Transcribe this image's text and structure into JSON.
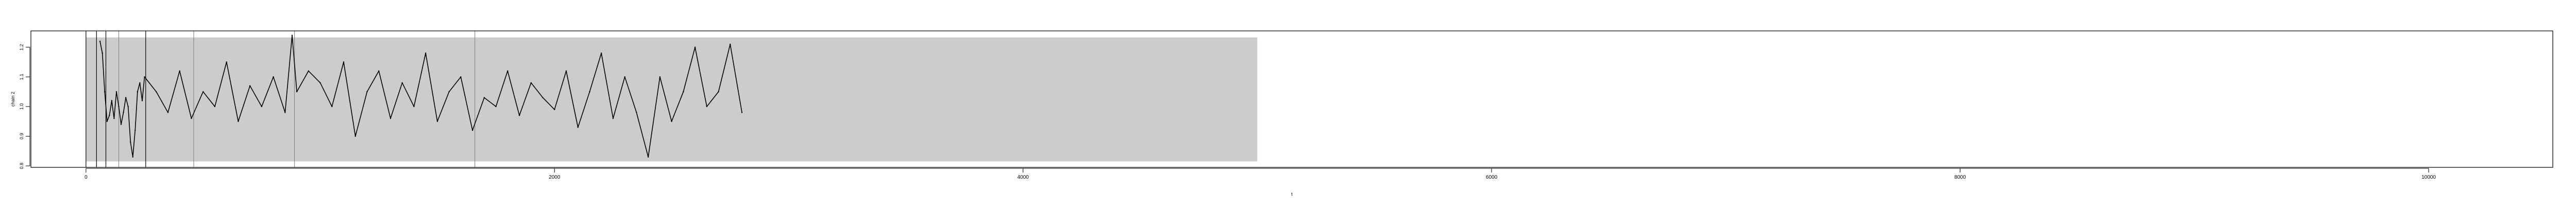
{
  "chart_data": {
    "type": "line",
    "title": "",
    "xlabel": "t",
    "ylabel": "chain 2",
    "xlim": [
      -235,
      10530
    ],
    "ylim": [
      0.795,
      1.255
    ],
    "x_ticks": [
      0,
      2000,
      4000,
      6000,
      8000,
      10000
    ],
    "x_tick_labels": [
      "0",
      "2000",
      "4000",
      "6000",
      "8000",
      "10000"
    ],
    "y_ticks": [
      0.8,
      0.9,
      1.0,
      1.1,
      1.2
    ],
    "y_tick_labels": [
      "0.8",
      "0.9",
      "1.0",
      "1.1",
      "1.2"
    ],
    "grid": false,
    "legend": "none",
    "shaded_region": {
      "x_start": 0,
      "x_end": 5000,
      "y_start": 0.815,
      "y_end": 1.233,
      "color": "#cccccc"
    },
    "vertical_lines": [
      {
        "x": 0,
        "color": "#000000"
      },
      {
        "x": 45,
        "color": "#000000"
      },
      {
        "x": 85,
        "color": "#000000"
      },
      {
        "x": 140,
        "color": "#888888"
      },
      {
        "x": 255,
        "color": "#000000"
      },
      {
        "x": 460,
        "color": "#888888"
      },
      {
        "x": 890,
        "color": "#888888"
      },
      {
        "x": 1660,
        "color": "#888888"
      }
    ],
    "series": [
      {
        "color": "#000000",
        "x": [
          60,
          70,
          80,
          90,
          100,
          110,
          120,
          130,
          140,
          150,
          160,
          170,
          180,
          190,
          200,
          210,
          220,
          230,
          240,
          250,
          300,
          350,
          400,
          450,
          500,
          550,
          600,
          650,
          700,
          750,
          800,
          850,
          880,
          900,
          950,
          1000,
          1050,
          1100,
          1150,
          1200,
          1250,
          1300,
          1350,
          1400,
          1450,
          1500,
          1550,
          1600,
          1650,
          1700,
          1750,
          1800,
          1850,
          1900,
          1950,
          2000,
          2050,
          2100,
          2150,
          2200,
          2250,
          2300,
          2350,
          2400,
          2450,
          2500,
          2550,
          2600,
          2650,
          2700,
          2750,
          2800
        ],
        "values": [
          1.22,
          1.18,
          1.05,
          0.95,
          0.97,
          1.02,
          0.96,
          1.05,
          1.0,
          0.94,
          0.98,
          1.03,
          1.0,
          0.88,
          0.83,
          0.92,
          1.05,
          1.08,
          1.02,
          1.1,
          1.05,
          0.98,
          1.12,
          0.96,
          1.05,
          1.0,
          1.15,
          0.95,
          1.07,
          1.0,
          1.1,
          0.98,
          1.24,
          1.05,
          1.12,
          1.08,
          1.0,
          1.15,
          0.9,
          1.05,
          1.12,
          0.96,
          1.08,
          1.0,
          1.18,
          0.95,
          1.05,
          1.1,
          0.92,
          1.03,
          1.0,
          1.12,
          0.97,
          1.08,
          1.03,
          0.99,
          1.12,
          0.93,
          1.05,
          1.18,
          0.96,
          1.1,
          0.98,
          0.83,
          1.1,
          0.95,
          1.05,
          1.2,
          1.0,
          1.05,
          1.21,
          0.98
        ]
      }
    ]
  }
}
